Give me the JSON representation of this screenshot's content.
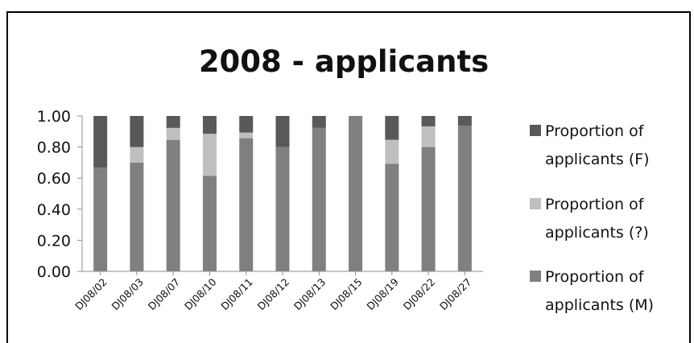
{
  "chart_data": {
    "type": "bar",
    "stacked": true,
    "title": "2008 - applicants",
    "xlabel": "",
    "ylabel": "",
    "ylim": [
      0,
      1
    ],
    "yticks": [
      "0.00",
      "0.20",
      "0.40",
      "0.60",
      "0.80",
      "1.00"
    ],
    "categories": [
      "DJ08/02",
      "DJ08/03",
      "DJ08/07",
      "DJ08/10",
      "DJ08/11",
      "DJ08/12",
      "DJ08/13",
      "DJ08/15",
      "DJ08/19",
      "DJ08/22",
      "DJ08/27"
    ],
    "series": [
      {
        "name": "Proportion of applicants (M)",
        "color": "#808080",
        "values": [
          0.667,
          0.7,
          0.846,
          0.615,
          0.857,
          0.8,
          0.923,
          1.0,
          0.692,
          0.8,
          0.938
        ]
      },
      {
        "name": "Proportion of applicants (?)",
        "color": "#bfbfbf",
        "values": [
          0.0,
          0.1,
          0.077,
          0.27,
          0.036,
          0.0,
          0.0,
          0.0,
          0.154,
          0.133,
          0.0
        ]
      },
      {
        "name": "Proportion of applicants (F)",
        "color": "#595959",
        "values": [
          0.333,
          0.2,
          0.077,
          0.115,
          0.107,
          0.2,
          0.077,
          0.0,
          0.154,
          0.067,
          0.062
        ]
      }
    ],
    "legend": {
      "position": "right",
      "entries": [
        {
          "line1": "Proportion of",
          "line2": "applicants (F)",
          "color": "#595959"
        },
        {
          "line1": "Proportion of",
          "line2": "applicants (?)",
          "color": "#bfbfbf"
        },
        {
          "line1": "Proportion of",
          "line2": "applicants (M)",
          "color": "#808080"
        }
      ]
    },
    "grid": false
  }
}
